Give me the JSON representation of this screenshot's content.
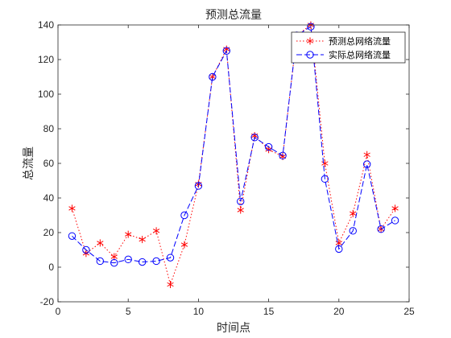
{
  "chart_data": {
    "type": "line",
    "title": "预测总流量",
    "xlabel": "时间点",
    "ylabel": "总流量",
    "xlim": [
      0,
      25
    ],
    "ylim": [
      -20,
      140
    ],
    "xticks": [
      0,
      5,
      10,
      15,
      20,
      25
    ],
    "yticks": [
      -20,
      0,
      20,
      40,
      60,
      80,
      100,
      120,
      140
    ],
    "legend_position": "top-right",
    "grid": false,
    "x": [
      1,
      2,
      3,
      4,
      5,
      6,
      7,
      8,
      9,
      10,
      11,
      12,
      13,
      14,
      15,
      16,
      17,
      18,
      19,
      20,
      21,
      22,
      23,
      24
    ],
    "series": [
      {
        "name": "预测总网络流量",
        "color": "#ff0000",
        "line_style": "dotted",
        "marker": "asterisk",
        "values": [
          34,
          8,
          14,
          6,
          19,
          16,
          21,
          -10,
          13,
          48,
          110,
          126,
          33,
          76,
          68,
          64,
          134,
          140,
          60,
          14,
          31,
          65,
          22,
          34
        ]
      },
      {
        "name": "实际总网络流量",
        "color": "#0000ff",
        "line_style": "dashed",
        "marker": "circle",
        "values": [
          18,
          10,
          3.5,
          2.5,
          4.5,
          3,
          3.5,
          5.5,
          30,
          47,
          110,
          125,
          38,
          75,
          69.5,
          64.5,
          134,
          139,
          51,
          10.5,
          21,
          59.5,
          22,
          27
        ]
      }
    ]
  }
}
